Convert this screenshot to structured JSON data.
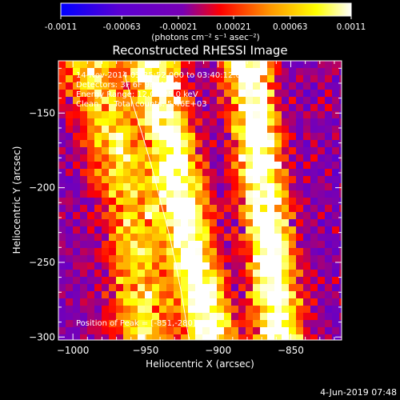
{
  "colorbar": {
    "ticks": [
      "-0.0011",
      "-0.00063",
      "-0.00021",
      "0.00021",
      "0.00063",
      "0.0011"
    ],
    "unit_label": "(photons cm⁻² s⁻¹ asec⁻²)",
    "colors": [
      "#0000ff",
      "#5a00d2",
      "#7800b4",
      "#ff0000",
      "#ff9600",
      "#ffff00",
      "#ffffff"
    ]
  },
  "footer": {
    "date": "4-Jun-2019 07:48"
  },
  "chart_data": {
    "type": "heatmap",
    "title": "Reconstructed RHESSI Image",
    "xlabel": "Heliocentric X (arcsec)",
    "ylabel": "Heliocentric Y (arcsec)",
    "xlim": [
      -1010,
      -815
    ],
    "ylim": [
      -302,
      -115
    ],
    "xticks": [
      -1000,
      -950,
      -900,
      -850
    ],
    "yticks": [
      -150,
      -200,
      -250,
      -300
    ],
    "xtick_labels": [
      "−1000",
      "−950",
      "−900",
      "−850"
    ],
    "ytick_labels": [
      "−150",
      "−200",
      "−250",
      "−300"
    ],
    "annotations": [
      "14-Nov-2014 03:35:52.000 to 03:40:12.000",
      "Detectors: 3F 6F 9F, Att 0",
      "Energy Range: 12.0 - 25.0 keV",
      "Clean      Total counts: 5.46E+03"
    ],
    "peak_label": "Position of Peak = [-851,-280]",
    "peak": [
      -851,
      -280
    ],
    "limb_curve": {
      "x": [
        -965,
        -960,
        -953,
        -946,
        -940,
        -934,
        -929,
        -925,
        -922,
        -920
      ],
      "y": [
        -122,
        -140,
        -162,
        -185,
        -208,
        -230,
        -252,
        -272,
        -290,
        -302
      ]
    },
    "emission_bands": [
      {
        "name": "left",
        "center": [
          -990,
          -960,
          -950
        ],
        "width": 20,
        "intensity": 0.55
      },
      {
        "name": "mid",
        "center": [
          -945,
          -925,
          -905
        ],
        "width": 16,
        "intensity": 0.9
      },
      {
        "name": "right",
        "center": [
          -880,
          -868,
          -858
        ],
        "width": 15,
        "intensity": 0.95
      }
    ],
    "value_range": [
      -0.0011,
      0.0011
    ]
  }
}
